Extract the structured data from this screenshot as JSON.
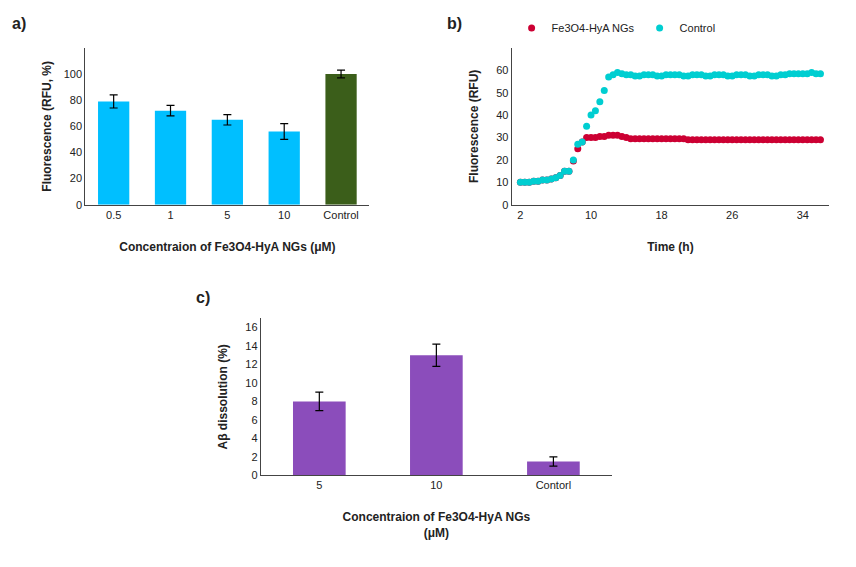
{
  "chart_data": [
    {
      "type": "bar",
      "title": "a)",
      "categories": [
        "0.5",
        "1",
        "5",
        "10",
        "Control"
      ],
      "values": [
        79,
        72,
        65,
        56,
        100
      ],
      "errors": [
        5,
        4,
        4,
        6,
        3
      ],
      "colors": [
        "#00BFFF",
        "#00BFFF",
        "#00BFFF",
        "#00BFFF",
        "#3B5E1A"
      ],
      "ylabel": "Fluorescence (RFU, %)",
      "xlabel": "Concentraion of Fe3O4-HyA NGs (μM)",
      "ylim": [
        0,
        120
      ],
      "yticks": [
        0,
        20,
        40,
        60,
        80,
        100
      ],
      "grid": false
    },
    {
      "type": "scatter",
      "title": "b)",
      "series": [
        {
          "name": "Fe3O4-HyA NGs",
          "color": "#CC0033",
          "x": [
            2,
            2.5,
            3,
            3.5,
            4,
            4.5,
            5,
            5.5,
            6,
            6.5,
            7,
            7.5,
            8,
            8.5,
            9,
            9.5,
            10,
            10.5,
            11,
            11.5,
            12,
            12.5,
            13,
            13.5,
            14,
            14.5,
            15,
            15.5,
            16,
            16.5,
            17,
            17.5,
            18,
            18.5,
            19,
            19.5,
            20,
            20.5,
            21,
            21.5,
            22,
            22.5,
            23,
            23.5,
            24,
            24.5,
            25,
            25.5,
            26,
            26.5,
            27,
            27.5,
            28,
            28.5,
            29,
            29.5,
            30,
            30.5,
            31,
            31.5,
            32,
            32.5,
            33,
            33.5,
            34,
            34.5,
            35,
            35.5,
            36
          ],
          "values": [
            10,
            10,
            10,
            10.5,
            10.5,
            11,
            11,
            11.5,
            12,
            13,
            15,
            15,
            19.5,
            25,
            28,
            30,
            30,
            30,
            30.5,
            30.5,
            31,
            31,
            31,
            30.5,
            30,
            29.5,
            29.5,
            29.5,
            29.5,
            29.5,
            29.5,
            29.5,
            29.5,
            29.5,
            29.5,
            29.5,
            29.5,
            29.5,
            29,
            29,
            29,
            29,
            29,
            29,
            29,
            29,
            29,
            29,
            29,
            29,
            29,
            29,
            29,
            29,
            29,
            29,
            29,
            29,
            29,
            29,
            29,
            29,
            29,
            29,
            29,
            29,
            29,
            29,
            29
          ]
        },
        {
          "name": "Control",
          "color": "#00CED1",
          "x": [
            2,
            2.5,
            3,
            3.5,
            4,
            4.5,
            5,
            5.5,
            6,
            6.5,
            7,
            7.5,
            8,
            8.5,
            9,
            9.5,
            10,
            10.5,
            11,
            11.5,
            12,
            12.5,
            13,
            13.5,
            14,
            14.5,
            15,
            15.5,
            16,
            16.5,
            17,
            17.5,
            18,
            18.5,
            19,
            19.5,
            20,
            20.5,
            21,
            21.5,
            22,
            22.5,
            23,
            23.5,
            24,
            24.5,
            25,
            25.5,
            26,
            26.5,
            27,
            27.5,
            28,
            28.5,
            29,
            29.5,
            30,
            30.5,
            31,
            31.5,
            32,
            32.5,
            33,
            33.5,
            34,
            34.5,
            35,
            35.5,
            36
          ],
          "values": [
            10,
            10,
            10,
            10.5,
            10.5,
            11,
            11,
            11.5,
            12,
            13,
            15,
            15,
            20,
            27,
            28,
            35,
            40,
            42,
            46,
            51,
            57,
            58,
            59,
            58.5,
            58,
            58,
            57.5,
            57.5,
            58,
            58,
            58,
            57.5,
            57.5,
            58,
            58,
            58,
            58,
            57.5,
            57.5,
            58,
            58,
            58,
            57.5,
            57.5,
            58,
            58,
            58,
            57.5,
            57.5,
            58,
            58,
            58,
            57.5,
            57.5,
            58,
            58,
            58,
            57.5,
            57.5,
            58,
            58,
            58.5,
            58.5,
            58.5,
            58.5,
            58.5,
            59,
            58.5,
            58.5
          ]
        }
      ],
      "ylabel": "Fluorescence (RFU)",
      "xlabel": "Time (h)",
      "xlim": [
        1,
        37
      ],
      "xticks": [
        2,
        10,
        18,
        26,
        34
      ],
      "ylim": [
        0,
        70
      ],
      "yticks": [
        0,
        10,
        20,
        30,
        40,
        50,
        60
      ],
      "legend": "upper left",
      "grid": false
    },
    {
      "type": "bar",
      "title": "c)",
      "categories": [
        "5",
        "10",
        "Contorl"
      ],
      "values": [
        8.0,
        13.0,
        1.5
      ],
      "errors": [
        1.0,
        1.2,
        0.5
      ],
      "color": "#8B4DBB",
      "ylabel": "Aβ dissolution (%)",
      "xlabel": "Concentraion of Fe3O4-HyA NGs\n(μM)",
      "ylim": [
        0,
        17
      ],
      "yticks": [
        0,
        2,
        4,
        6,
        8,
        10,
        12,
        14,
        16
      ],
      "grid": false
    }
  ]
}
